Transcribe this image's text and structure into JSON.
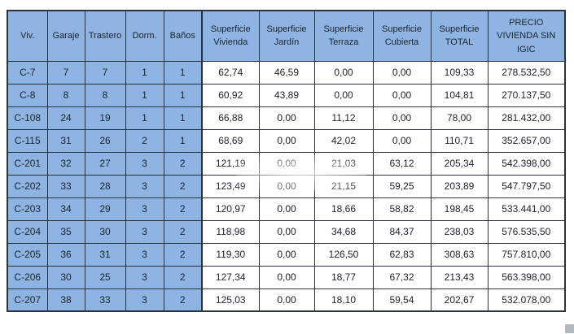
{
  "chart_data": {
    "type": "table",
    "title": "",
    "columns": [
      "Viv.",
      "Garaje",
      "Trastero",
      "Dorm.",
      "Baños",
      "Superficie\nVivienda",
      "Superficie\nJardín",
      "Superficie\nTerraza",
      "Superficie\nCubierta",
      "Superficie\nTOTAL",
      "PRECIO\nVIVIENDA SIN\nIGIC"
    ],
    "rows": [
      [
        "C-7",
        "7",
        "7",
        "1",
        "1",
        "62,74",
        "46,59",
        "0,00",
        "0,00",
        "109,33",
        "278.532,50"
      ],
      [
        "C-8",
        "8",
        "8",
        "1",
        "1",
        "60,92",
        "43,89",
        "0,00",
        "0,00",
        "104,81",
        "270.137,50"
      ],
      [
        "C-108",
        "24",
        "19",
        "1",
        "1",
        "66,88",
        "0,00",
        "11,12",
        "0,00",
        "78,00",
        "281.432,00"
      ],
      [
        "C-115",
        "31",
        "26",
        "2",
        "1",
        "68,69",
        "0,00",
        "42,02",
        "0,00",
        "110,71",
        "352.657,00"
      ],
      [
        "C-201",
        "32",
        "27",
        "3",
        "2",
        "121,19",
        "0,00",
        "21,03",
        "63,12",
        "205,34",
        "542.398,00"
      ],
      [
        "C-202",
        "33",
        "28",
        "3",
        "2",
        "123,49",
        "0,00",
        "21,15",
        "59,25",
        "203,89",
        "547.797,50"
      ],
      [
        "C-203",
        "34",
        "29",
        "3",
        "2",
        "120,97",
        "0,00",
        "18,66",
        "58,82",
        "198,45",
        "533.441,00"
      ],
      [
        "C-204",
        "35",
        "30",
        "3",
        "2",
        "118,98",
        "0,00",
        "34,68",
        "84,37",
        "238,03",
        "576.535,50"
      ],
      [
        "C-205",
        "36",
        "31",
        "3",
        "2",
        "119,30",
        "0,00",
        "126,50",
        "62,83",
        "308,63",
        "757.810,00"
      ],
      [
        "C-206",
        "30",
        "25",
        "3",
        "2",
        "127,34",
        "0,00",
        "18,77",
        "67,32",
        "213,43",
        "563.398,00"
      ],
      [
        "C-207",
        "38",
        "33",
        "3",
        "2",
        "125,03",
        "0,00",
        "18,10",
        "59,54",
        "202,67",
        "532.078,00"
      ]
    ],
    "layout_hints": {
      "blue_columns": 5,
      "header_fill": "#8db4e2",
      "key_column_fill": "#8db4e2",
      "data_fill": "#ffffff",
      "border_color": "#2d333c",
      "text_color": "#20242c"
    }
  }
}
